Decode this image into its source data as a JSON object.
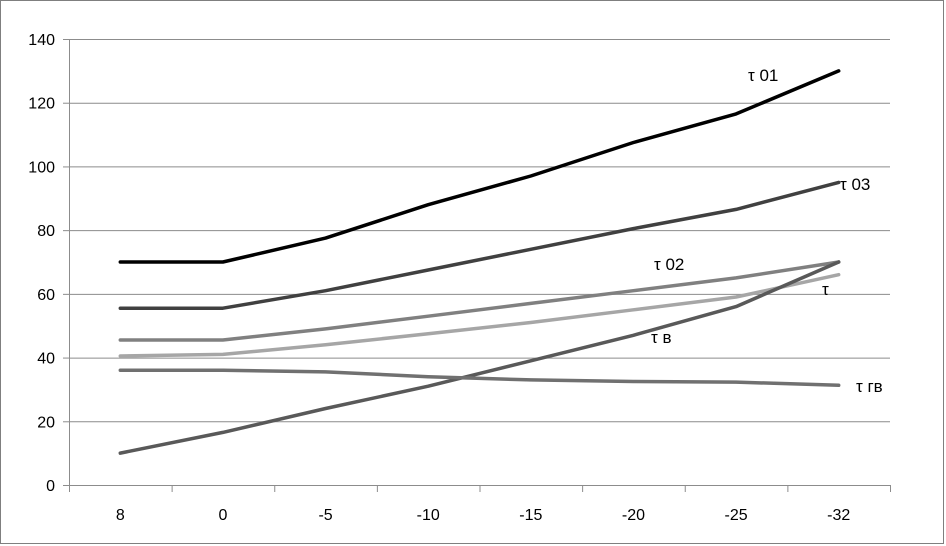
{
  "chart_data": {
    "type": "line",
    "title": "",
    "xlabel": "",
    "ylabel": "",
    "categories": [
      "8",
      "0",
      "-5",
      "-10",
      "-15",
      "-20",
      "-25",
      "-32"
    ],
    "ylim": [
      0,
      140
    ],
    "yticks": [
      0,
      20,
      40,
      60,
      80,
      100,
      120,
      140
    ],
    "grid": true,
    "legend": "none",
    "series": [
      {
        "name": "τ 01",
        "color": "#000000",
        "values": [
          70,
          70,
          77.5,
          88,
          97,
          107.5,
          116.5,
          130
        ]
      },
      {
        "name": "τ 03",
        "color": "#404040",
        "values": [
          55.5,
          55.5,
          61,
          67.5,
          74,
          80.5,
          86.5,
          95
        ]
      },
      {
        "name": "τ 02",
        "color": "#808080",
        "values": [
          45.5,
          45.5,
          49,
          53,
          57,
          61,
          65,
          70
        ]
      },
      {
        "name": "τ",
        "color": "#a6a6a6",
        "values": [
          40.5,
          41,
          44,
          47.5,
          51,
          55,
          59,
          66
        ]
      },
      {
        "name": "τ в",
        "color": "#595959",
        "values": [
          10,
          16.5,
          24,
          31,
          39,
          47,
          56,
          70
        ]
      },
      {
        "name": "τ гв",
        "color": "#707070",
        "values": [
          36,
          36,
          35.5,
          34,
          33,
          32.5,
          32.3,
          31.3
        ]
      }
    ]
  }
}
